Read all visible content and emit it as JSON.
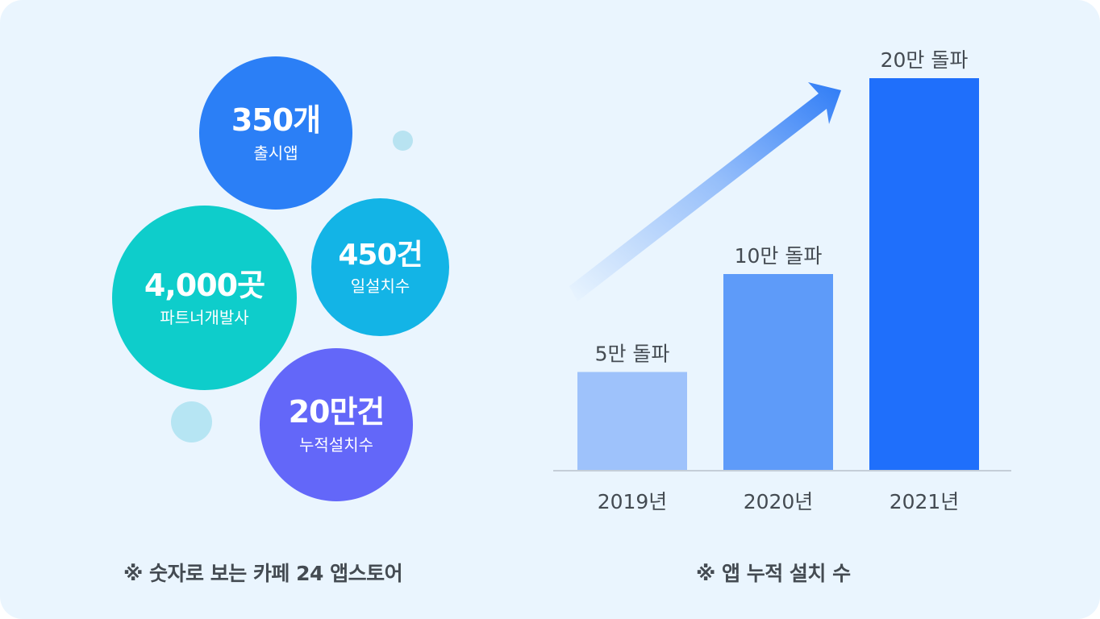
{
  "left_panel": {
    "bubbles": [
      {
        "value": "350개",
        "label": "출시앱",
        "color": "#2b7ff6"
      },
      {
        "value": "450건",
        "label": "일설치수",
        "color": "#13b4e6"
      },
      {
        "value": "4,000곳",
        "label": "파트너개발사",
        "color": "#0ecdcb"
      },
      {
        "value": "20만건",
        "label": "누적설치수",
        "color": "#6367f9"
      }
    ],
    "caption": "※ 숫자로 보는 카페 24 앱스토어"
  },
  "chart_data": {
    "type": "bar",
    "categories": [
      "2019년",
      "2020년",
      "2021년"
    ],
    "values": [
      50000,
      100000,
      200000
    ],
    "data_labels": [
      "5만 돌파",
      "10만 돌파",
      "20만 돌파"
    ],
    "bar_colors": [
      "#9ec2fb",
      "#5e9bf9",
      "#1f6ffb"
    ],
    "ylim": [
      0,
      200000
    ],
    "grid": false,
    "title": "",
    "xlabel": "",
    "ylabel": ""
  },
  "right_panel": {
    "caption": "※ 앱 누적 설치 수"
  },
  "colors": {
    "background": "#eaf5fe",
    "axis": "#c5ced8",
    "text": "#444b52",
    "arrow": "#2f7cf6"
  }
}
